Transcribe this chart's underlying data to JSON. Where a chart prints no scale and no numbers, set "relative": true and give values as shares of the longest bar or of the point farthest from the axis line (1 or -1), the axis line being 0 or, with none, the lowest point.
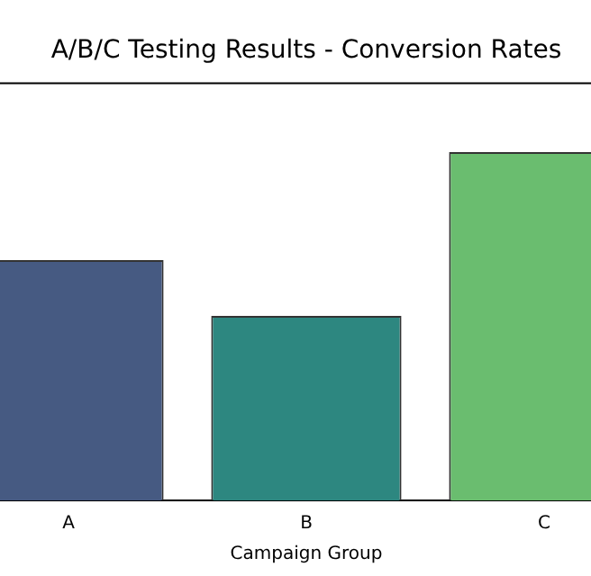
{
  "chart_data": {
    "type": "bar",
    "title": "A/B/C Testing Results - Conversion Rates",
    "xlabel": "Campaign Group",
    "categories": [
      "A",
      "B",
      "C"
    ],
    "relative": true,
    "values": [
      0.69,
      0.53,
      1
    ],
    "colors": [
      "#465a82",
      "#2d8780",
      "#6abd6f"
    ],
    "legend": false,
    "grid": false
  }
}
